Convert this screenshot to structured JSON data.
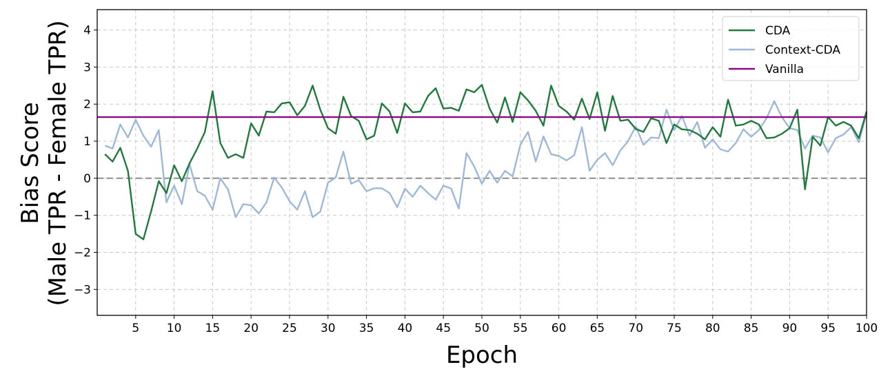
{
  "chart_data": {
    "type": "line",
    "xlabel": "Epoch",
    "ylabel_lines": [
      "Bias Score",
      "(Male TPR - Female TPR)"
    ],
    "xlim": [
      0,
      100
    ],
    "ylim": [
      -3.7,
      4.55
    ],
    "x_ticks": [
      5,
      10,
      15,
      20,
      25,
      30,
      35,
      40,
      45,
      50,
      55,
      60,
      65,
      70,
      75,
      80,
      85,
      90,
      95,
      100
    ],
    "y_ticks": [
      -3,
      -2,
      -1,
      0,
      1,
      2,
      3,
      4
    ],
    "y_tick_labels": [
      "−3",
      "−2",
      "−1",
      "0",
      "1",
      "2",
      "3",
      "4"
    ],
    "grid": true,
    "zero_line": {
      "y": 0,
      "style": "dashed",
      "color": "#999999"
    },
    "legend_position": "top-right",
    "series": [
      {
        "name": "CDA",
        "color": "#1e7a3c",
        "x": [
          1,
          2,
          3,
          4,
          5,
          6,
          7,
          8,
          9,
          10,
          11,
          12,
          13,
          14,
          15,
          16,
          17,
          18,
          19,
          20,
          21,
          22,
          23,
          24,
          25,
          26,
          27,
          28,
          29,
          30,
          31,
          32,
          33,
          34,
          35,
          36,
          37,
          38,
          39,
          40,
          41,
          42,
          43,
          44,
          45,
          46,
          47,
          48,
          49,
          50,
          51,
          52,
          53,
          54,
          55,
          56,
          57,
          58,
          59,
          60,
          61,
          62,
          63,
          64,
          65,
          66,
          67,
          68,
          69,
          70,
          71,
          72,
          73,
          74,
          75,
          76,
          77,
          78,
          79,
          80,
          81,
          82,
          83,
          84,
          85,
          86,
          87,
          88,
          89,
          90,
          91,
          92,
          93,
          94,
          95,
          96,
          97,
          98,
          99,
          100
        ],
        "values": [
          0.65,
          0.45,
          0.82,
          0.2,
          -1.5,
          -1.65,
          -0.9,
          -0.08,
          -0.4,
          0.35,
          -0.08,
          0.4,
          0.8,
          1.25,
          2.35,
          0.95,
          0.55,
          0.65,
          0.55,
          1.48,
          1.15,
          1.8,
          1.78,
          2.02,
          2.05,
          1.7,
          1.95,
          2.5,
          1.85,
          1.35,
          1.2,
          2.2,
          1.68,
          1.55,
          1.05,
          1.15,
          2.02,
          1.8,
          1.22,
          2.02,
          1.78,
          1.8,
          2.22,
          2.43,
          1.88,
          1.9,
          1.82,
          2.4,
          2.32,
          2.52,
          1.88,
          1.5,
          2.18,
          1.52,
          2.32,
          2.1,
          1.82,
          1.42,
          2.5,
          1.95,
          1.8,
          1.58,
          2.15,
          1.6,
          2.32,
          1.28,
          2.22,
          1.55,
          1.58,
          1.33,
          1.25,
          1.62,
          1.55,
          0.95,
          1.45,
          1.32,
          1.3,
          1.2,
          1.05,
          1.38,
          1.12,
          2.12,
          1.42,
          1.45,
          1.55,
          1.45,
          1.08,
          1.1,
          1.2,
          1.35,
          1.85,
          -0.3,
          1.12,
          0.88,
          1.65,
          1.42,
          1.52,
          1.42,
          1.08,
          1.8
        ]
      },
      {
        "name": "Context-CDA",
        "color": "#9db8d9",
        "x": [
          1,
          2,
          3,
          4,
          5,
          6,
          7,
          8,
          9,
          10,
          11,
          12,
          13,
          14,
          15,
          16,
          17,
          18,
          19,
          20,
          21,
          22,
          23,
          24,
          25,
          26,
          27,
          28,
          29,
          30,
          31,
          32,
          33,
          34,
          35,
          36,
          37,
          38,
          39,
          40,
          41,
          42,
          43,
          44,
          45,
          46,
          47,
          48,
          49,
          50,
          51,
          52,
          53,
          54,
          55,
          56,
          57,
          58,
          59,
          60,
          61,
          62,
          63,
          64,
          65,
          66,
          67,
          68,
          69,
          70,
          71,
          72,
          73,
          74,
          75,
          76,
          77,
          78,
          79,
          80,
          81,
          82,
          83,
          84,
          85,
          86,
          87,
          88,
          89,
          90,
          91,
          92,
          93,
          94,
          95,
          96,
          97,
          98,
          99,
          100
        ],
        "values": [
          0.88,
          0.8,
          1.45,
          1.1,
          1.58,
          1.15,
          0.85,
          1.3,
          -0.65,
          -0.2,
          -0.7,
          0.38,
          -0.35,
          -0.47,
          -0.85,
          0.0,
          -0.3,
          -1.05,
          -0.7,
          -0.73,
          -0.95,
          -0.65,
          0.02,
          -0.25,
          -0.62,
          -0.85,
          -0.35,
          -1.05,
          -0.9,
          -0.12,
          0.02,
          0.72,
          -0.15,
          -0.05,
          -0.35,
          -0.27,
          -0.27,
          -0.4,
          -0.78,
          -0.28,
          -0.5,
          -0.2,
          -0.4,
          -0.58,
          -0.2,
          -0.28,
          -0.82,
          0.68,
          0.32,
          -0.15,
          0.2,
          -0.12,
          0.2,
          0.05,
          0.9,
          1.25,
          0.45,
          1.13,
          0.65,
          0.6,
          0.48,
          0.62,
          1.38,
          0.2,
          0.5,
          0.68,
          0.35,
          0.75,
          1.0,
          1.4,
          0.9,
          1.1,
          1.08,
          1.85,
          1.3,
          1.68,
          1.15,
          1.52,
          0.82,
          1.05,
          0.78,
          0.72,
          0.95,
          1.32,
          1.12,
          1.3,
          1.62,
          2.08,
          1.65,
          1.35,
          1.3,
          0.8,
          1.15,
          1.1,
          0.7,
          1.08,
          1.18,
          1.38,
          0.97,
          1.75
        ]
      },
      {
        "name": "Vanilla",
        "color": "#8b0a7f",
        "x": [
          0,
          100
        ],
        "values": [
          1.65,
          1.65
        ]
      }
    ]
  }
}
